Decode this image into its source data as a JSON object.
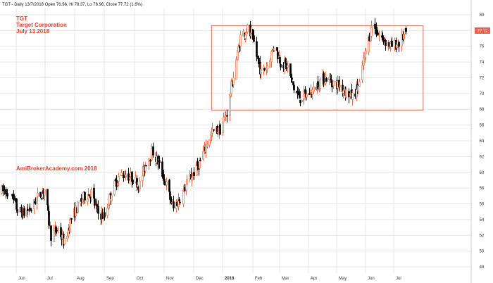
{
  "header": {
    "info": "TGT - Daily 13/7/2018 Open 76.96, Hi 78.37, Lo 76.96, Close 77.72 (1.6%)"
  },
  "annotations": {
    "symbol": "TGT",
    "company": "Target Corporation",
    "date": "July 13.2018",
    "watermark": "AmiBrokerAcademy.com  2018"
  },
  "price_badge": "77.72",
  "colors": {
    "up": "#e8734a",
    "down": "#000000",
    "accent_red": "#e0402a",
    "box": "#e06b5c",
    "badge_bg": "#e8634a",
    "grid": "#e6e6e6"
  },
  "chart_data": {
    "type": "candlestick",
    "symbol": "TGT",
    "interval": "Daily",
    "x_ticks": [
      "Jun",
      "Jul",
      "Aug",
      "Sep",
      "Oct",
      "Nov",
      "Dec",
      "2018",
      "Feb",
      "Mar",
      "Apr",
      "May",
      "Jun",
      "Jul"
    ],
    "y_ticks": [
      48,
      50,
      52,
      54,
      56,
      58,
      60,
      62,
      64,
      66,
      68,
      70,
      72,
      74,
      76,
      78,
      80
    ],
    "ylim": [
      47.2,
      80.8
    ],
    "grid": true,
    "last_close": 77.72,
    "consolidation_box": {
      "start": "2018-01-02",
      "end": "2018-07-13",
      "low": 67.9,
      "high": 78.6
    },
    "weekly_close_path": [
      [
        "2017-05-26",
        57.6
      ],
      [
        "2017-06-02",
        55.2
      ],
      [
        "2017-06-09",
        54.8
      ],
      [
        "2017-06-16",
        55.4
      ],
      [
        "2017-06-23",
        56.8
      ],
      [
        "2017-06-30",
        57.8
      ],
      [
        "2017-07-07",
        52.0
      ],
      [
        "2017-07-14",
        52.8
      ],
      [
        "2017-07-21",
        51.0
      ],
      [
        "2017-07-28",
        54.2
      ],
      [
        "2017-08-04",
        55.6
      ],
      [
        "2017-08-11",
        57.0
      ],
      [
        "2017-08-18",
        57.4
      ],
      [
        "2017-08-25",
        54.8
      ],
      [
        "2017-09-01",
        54.4
      ],
      [
        "2017-09-08",
        57.6
      ],
      [
        "2017-09-15",
        59.4
      ],
      [
        "2017-09-22",
        59.8
      ],
      [
        "2017-09-29",
        59.2
      ],
      [
        "2017-10-06",
        58.4
      ],
      [
        "2017-10-13",
        61.4
      ],
      [
        "2017-10-20",
        62.6
      ],
      [
        "2017-10-27",
        60.8
      ],
      [
        "2017-11-03",
        58.4
      ],
      [
        "2017-11-10",
        55.4
      ],
      [
        "2017-11-17",
        56.8
      ],
      [
        "2017-11-24",
        58.6
      ],
      [
        "2017-12-01",
        60.0
      ],
      [
        "2017-12-08",
        61.4
      ],
      [
        "2017-12-15",
        63.8
      ],
      [
        "2017-12-22",
        65.2
      ],
      [
        "2017-12-29",
        65.4
      ],
      [
        "2018-01-05",
        67.6
      ],
      [
        "2018-01-12",
        72.2
      ],
      [
        "2018-01-19",
        77.2
      ],
      [
        "2018-01-26",
        78.2
      ],
      [
        "2018-02-02",
        76.4
      ],
      [
        "2018-02-09",
        72.6
      ],
      [
        "2018-02-16",
        73.6
      ],
      [
        "2018-02-23",
        76.2
      ],
      [
        "2018-03-02",
        74.0
      ],
      [
        "2018-03-09",
        73.4
      ],
      [
        "2018-03-16",
        70.6
      ],
      [
        "2018-03-23",
        69.4
      ],
      [
        "2018-03-30",
        69.8
      ],
      [
        "2018-04-06",
        70.4
      ],
      [
        "2018-04-13",
        71.6
      ],
      [
        "2018-04-20",
        72.0
      ],
      [
        "2018-04-27",
        71.4
      ],
      [
        "2018-05-04",
        71.0
      ],
      [
        "2018-05-11",
        70.2
      ],
      [
        "2018-05-18",
        69.6
      ],
      [
        "2018-05-25",
        71.2
      ],
      [
        "2018-06-01",
        75.4
      ],
      [
        "2018-06-08",
        78.8
      ],
      [
        "2018-06-15",
        77.4
      ],
      [
        "2018-06-22",
        76.6
      ],
      [
        "2018-06-29",
        76.0
      ],
      [
        "2018-07-06",
        76.4
      ],
      [
        "2018-07-13",
        77.7
      ]
    ]
  }
}
